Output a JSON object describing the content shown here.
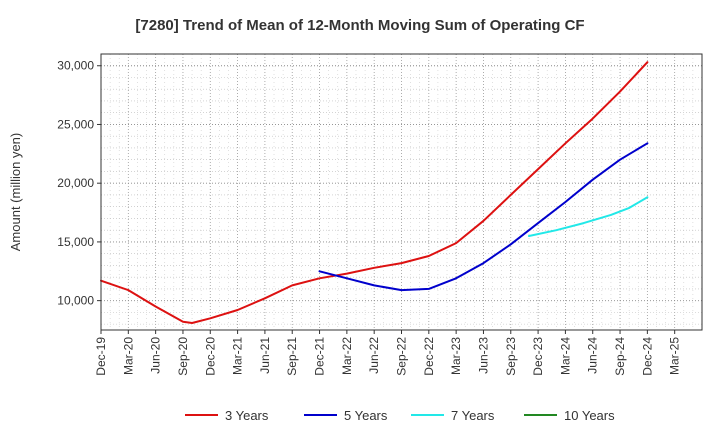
{
  "chart_data": {
    "type": "line",
    "title": "[7280]  Trend of Mean of 12-Month Moving Sum of Operating CF",
    "xlabel": "",
    "ylabel": "Amount (million yen)",
    "ylim": [
      7500,
      31000
    ],
    "yticks": [
      10000,
      15000,
      20000,
      25000,
      30000
    ],
    "ytick_labels": [
      "10,000",
      "15,000",
      "20,000",
      "25,000",
      "30,000"
    ],
    "x_months_total": 66,
    "xticks": [
      "Dec-19",
      "Mar-20",
      "Jun-20",
      "Sep-20",
      "Dec-20",
      "Mar-21",
      "Jun-21",
      "Sep-21",
      "Dec-21",
      "Mar-22",
      "Jun-22",
      "Sep-22",
      "Dec-22",
      "Mar-23",
      "Jun-23",
      "Sep-23",
      "Dec-23",
      "Mar-24",
      "Jun-24",
      "Sep-24",
      "Dec-24",
      "Mar-25"
    ],
    "grid": true,
    "legend_position": "bottom",
    "series": [
      {
        "name": "3 Years",
        "color": "#dd1111",
        "points": [
          [
            0,
            11700
          ],
          [
            3,
            10900
          ],
          [
            6,
            9500
          ],
          [
            9,
            8200
          ],
          [
            10,
            8100
          ],
          [
            12,
            8500
          ],
          [
            15,
            9200
          ],
          [
            18,
            10200
          ],
          [
            21,
            11300
          ],
          [
            24,
            11900
          ],
          [
            27,
            12300
          ],
          [
            30,
            12800
          ],
          [
            33,
            13200
          ],
          [
            36,
            13800
          ],
          [
            39,
            14900
          ],
          [
            42,
            16800
          ],
          [
            45,
            19000
          ],
          [
            48,
            21200
          ],
          [
            51,
            23400
          ],
          [
            54,
            25500
          ],
          [
            57,
            27800
          ],
          [
            60,
            30300
          ]
        ]
      },
      {
        "name": "5 Years",
        "color": "#0000cc",
        "points": [
          [
            24,
            12500
          ],
          [
            27,
            11900
          ],
          [
            30,
            11300
          ],
          [
            33,
            10900
          ],
          [
            36,
            11000
          ],
          [
            39,
            11900
          ],
          [
            42,
            13200
          ],
          [
            45,
            14800
          ],
          [
            48,
            16600
          ],
          [
            51,
            18400
          ],
          [
            54,
            20300
          ],
          [
            57,
            22000
          ],
          [
            60,
            23400
          ]
        ]
      },
      {
        "name": "7 Years",
        "color": "#22e8e8",
        "points": [
          [
            47,
            15500
          ],
          [
            50,
            16000
          ],
          [
            53,
            16600
          ],
          [
            56,
            17300
          ],
          [
            58,
            17900
          ],
          [
            60,
            18800
          ]
        ]
      },
      {
        "name": "10 Years",
        "color": "#228822",
        "points": []
      }
    ]
  }
}
